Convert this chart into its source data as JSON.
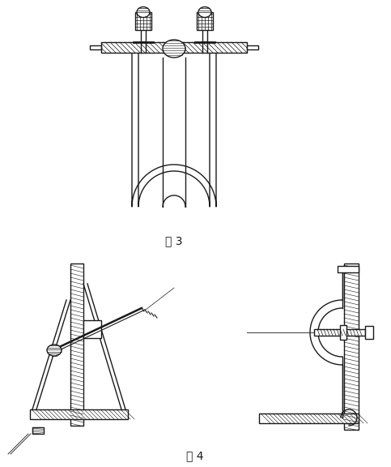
{
  "fig3_label": "图 3",
  "fig4_label": "图 4",
  "background_color": "#ffffff",
  "line_color": "#1a1a1a",
  "fig_width": 4.83,
  "fig_height": 5.76,
  "dpi": 100
}
